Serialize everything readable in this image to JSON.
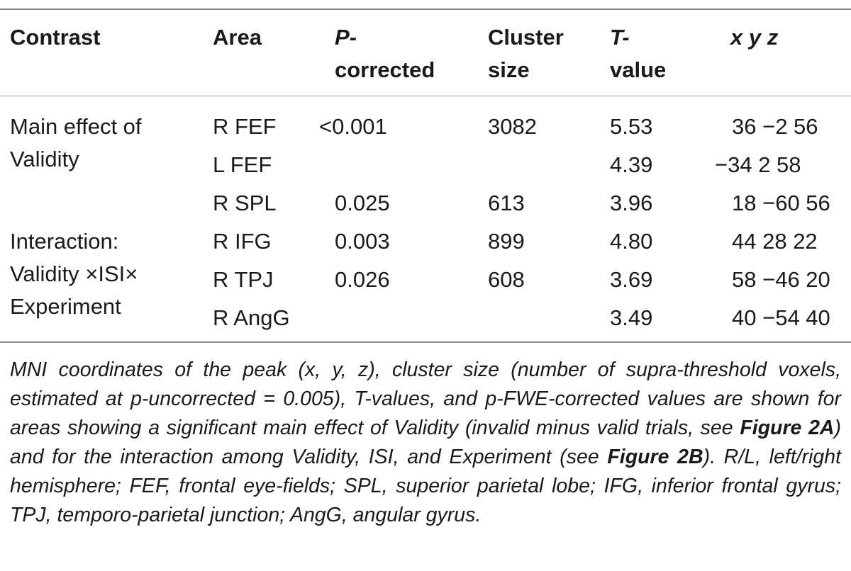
{
  "table": {
    "headers": {
      "contrast": "Contrast",
      "area": "Area",
      "p_line1": "P-",
      "p_line2": "corrected",
      "cluster_line1": "Cluster",
      "cluster_line2": "size",
      "t_line1": "T-",
      "t_line2": "value",
      "xyz": "x y z"
    },
    "contrast_1": {
      "line1": "Main effect of",
      "line2": "Validity"
    },
    "contrast_2": {
      "line1": "Interaction:",
      "line2": "Validity ×ISI×",
      "line3": "Experiment"
    },
    "rows": [
      {
        "area": "R FEF",
        "p": "<0.001",
        "cluster": "3082",
        "t": "5.53",
        "xyz": "36 −2 56"
      },
      {
        "area": "L FEF",
        "p": "",
        "cluster": "",
        "t": "4.39",
        "xyz": "−34 2 58"
      },
      {
        "area": "R SPL",
        "p": "0.025",
        "cluster": "613",
        "t": "3.96",
        "xyz": "18 −60 56"
      },
      {
        "area": "R IFG",
        "p": "0.003",
        "cluster": "899",
        "t": "4.80",
        "xyz": "44 28 22"
      },
      {
        "area": "R TPJ",
        "p": "0.026",
        "cluster": "608",
        "t": "3.69",
        "xyz": "58 −46 20"
      },
      {
        "area": "R AngG",
        "p": "",
        "cluster": "",
        "t": "3.49",
        "xyz": "40 −54 40"
      }
    ]
  },
  "caption": {
    "part1": "MNI coordinates of the peak (x, y, z), cluster size (number of supra-threshold voxels, estimated at p-uncorrected = 0.005), T-values, and p-FWE-corrected values are shown for areas showing a significant main effect of Validity (invalid minus valid trials, see ",
    "fig_a": "Figure 2A",
    "part2": ") and for the interaction among Validity, ISI, and Experiment (see ",
    "fig_b": "Figure 2B",
    "part3": "). R/L, left/right hemisphere; FEF, frontal eye-fields; SPL, superior parietal lobe; IFG, inferior frontal gyrus; TPJ, temporo-parietal junction; AngG, angular gyrus."
  }
}
